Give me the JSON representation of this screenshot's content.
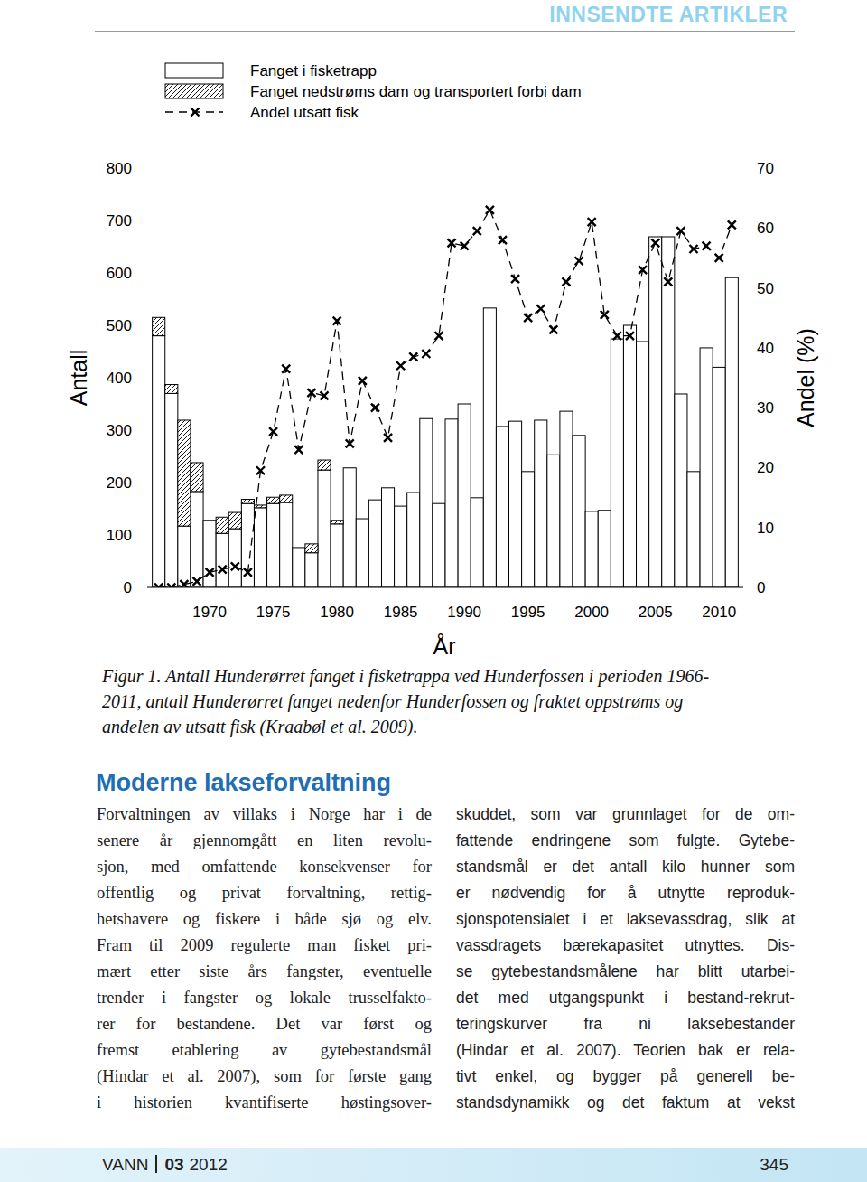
{
  "header": "INNSENDTE ARTIKLER",
  "chart_data": {
    "type": "bar",
    "x_label": "År",
    "y_label": "Antall",
    "y2_label": "Andel (%)",
    "stacked": true,
    "x": [
      1966,
      1967,
      1968,
      1969,
      1970,
      1971,
      1972,
      1973,
      1974,
      1975,
      1976,
      1977,
      1978,
      1979,
      1980,
      1981,
      1982,
      1983,
      1984,
      1985,
      1986,
      1987,
      1988,
      1989,
      1990,
      1991,
      1992,
      1993,
      1994,
      1995,
      1996,
      1997,
      1998,
      1999,
      2000,
      2001,
      2002,
      2003,
      2004,
      2005,
      2006,
      2007,
      2008,
      2009,
      2010,
      2011
    ],
    "xlim": [
      1965.1,
      2011.9
    ],
    "xticks": [
      1970,
      1975,
      1980,
      1985,
      1990,
      1995,
      2000,
      2005,
      2010
    ],
    "ylim": [
      0,
      800
    ],
    "yticks": [
      0,
      100,
      200,
      300,
      400,
      500,
      600,
      700,
      800
    ],
    "y2lim": [
      0,
      70
    ],
    "y2ticks": [
      0,
      10,
      20,
      30,
      40,
      50,
      60,
      70
    ],
    "series": [
      {
        "name": "Fanget i fisketrapp",
        "type": "bar",
        "color": "#000000",
        "line_style": "solid",
        "values": [
          480,
          370,
          117,
          183,
          128,
          103,
          112,
          160,
          152,
          160,
          162,
          76,
          66,
          224,
          121,
          228,
          131,
          167,
          190,
          155,
          181,
          322,
          160,
          321,
          350,
          171,
          533,
          307,
          317,
          221,
          319,
          253,
          336,
          290,
          145,
          147,
          474,
          500,
          469,
          669,
          669,
          369,
          221,
          457,
          420,
          591
        ]
      },
      {
        "name": "Fanget nedstrøms dam og transportert forbi dam",
        "type": "bar",
        "color": "#000000",
        "line_style": "hatched",
        "values": [
          35,
          17,
          202,
          55,
          0,
          31,
          31,
          8,
          5,
          12,
          14,
          0,
          17,
          19,
          7,
          0,
          0,
          0,
          0,
          0,
          0,
          0,
          0,
          0,
          0,
          0,
          0,
          0,
          0,
          0,
          0,
          0,
          0,
          0,
          0,
          0,
          0,
          0,
          0,
          0,
          0,
          0,
          0,
          0,
          0,
          0
        ]
      },
      {
        "name": "Andel utsatt fisk",
        "type": "line",
        "axis": "y2",
        "color": "#000000",
        "marker": "x",
        "line_style": "dashed",
        "values": [
          0,
          0,
          0.5,
          1,
          2.5,
          3,
          3.5,
          2.5,
          19.5,
          26,
          36.5,
          23,
          32.5,
          32,
          44.5,
          24,
          34.5,
          30,
          25,
          37,
          38.5,
          39,
          42,
          57.5,
          57,
          59.5,
          63,
          58,
          51.5,
          45,
          46.5,
          43,
          51,
          54.5,
          61,
          45.5,
          42,
          42,
          53,
          57.5,
          51,
          59.5,
          56.5,
          57,
          55,
          60.5
        ]
      }
    ]
  },
  "caption": [
    "Figur 1. Antall Hunderørret fanget i fisketrappa ved Hunderfossen i perioden 1966-",
    "2011, antall Hunderørret fanget nedenfor Hunderfossen og fraktet oppstrøms og",
    "andelen av utsatt fisk (Kraabøl et al. 2009)."
  ],
  "article": {
    "heading": "Moderne lakseforvaltning",
    "left_column": [
      "Forvaltningen av villaks i Norge har i de",
      "senere år gjennomgått en liten revolu-",
      "sjon, med omfattende konsekvenser for",
      "offentlig og privat forvaltning, rettig-",
      "hetshavere og fiskere i både sjø og elv.",
      "Fram til 2009 regulerte man fisket pri-",
      "mært etter siste års fangster, eventuelle",
      "trender i fangster og lokale trusselfakto-",
      "rer for bestandene. Det var først og",
      "fremst etablering av gytebestandsmål",
      "(Hindar et al. 2007), som for første gang",
      "i historien kvantifiserte høstingsover-"
    ],
    "right_column": [
      "skuddet, som var grunnlaget for de om-",
      "fattende endringene som fulgte. Gytebe-",
      "standsmål er det antall kilo hunner som",
      "er nødvendig for å utnytte reproduk-",
      "sjonspotensialet i et laksevassdrag, slik at",
      "vassdragets bærekapasitet utnyttes. Dis-",
      "se gytebestandsmålene har blitt utarbei-",
      "det med utgangspunkt i bestand-rekrut-",
      "teringskurver fra ni laksebestander",
      "(Hindar et al. 2007). Teorien bak er rela-",
      "tivt enkel, og bygger på generell be-",
      "standsdynamikk og det faktum at vekst"
    ]
  },
  "footer": {
    "journal": "VANN",
    "issue": "03",
    "year": "2012",
    "page": "345"
  }
}
